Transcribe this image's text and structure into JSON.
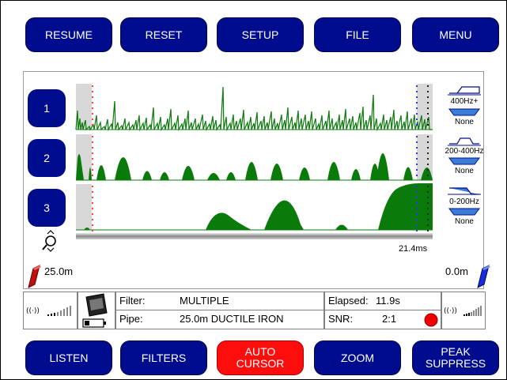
{
  "top_buttons": [
    {
      "label": "RESUME"
    },
    {
      "label": "RESET"
    },
    {
      "label": "SETUP"
    },
    {
      "label": "FILE"
    },
    {
      "label": "MENU"
    }
  ],
  "bottom_buttons": [
    {
      "label_line1": "LISTEN",
      "label_line2": ""
    },
    {
      "label_line1": "FILTERS",
      "label_line2": ""
    },
    {
      "label_line1": "AUTO",
      "label_line2": "CURSOR"
    },
    {
      "label_line1": "ZOOM",
      "label_line2": ""
    },
    {
      "label_line1": "PEAK",
      "label_line2": "SUPPRESS"
    }
  ],
  "channels": [
    {
      "label": "1",
      "filter": "400Hz+",
      "filter2": "None"
    },
    {
      "label": "2",
      "filter": "200-400Hz",
      "filter2": "None"
    },
    {
      "label": "3",
      "filter": "0-200Hz",
      "filter2": "None"
    }
  ],
  "time_readout": "21.4ms",
  "left_distance": "25.0m",
  "right_distance": "0.0m",
  "info": {
    "filter_label": "Filter:",
    "filter_value": "MULTIPLE",
    "pipe_label": "Pipe:",
    "pipe_value": "25.0m DUCTILE IRON",
    "elapsed_label": "Elapsed:",
    "elapsed_value": "11.9s",
    "snr_label": "SNR:",
    "snr_value": "2:1"
  },
  "icons": {
    "zoom": "magnifier-icon",
    "sensor_left": "sensor-red-icon",
    "sensor_right": "sensor-blue-icon",
    "signal_left": "wireless-signal-icon",
    "signal_right": "wireless-signal-icon",
    "device": "logger-device-icon",
    "battery": "battery-icon",
    "status": "record-indicator-icon"
  },
  "colors": {
    "button": "#000c8e",
    "button_active": "#ff0d0d",
    "waveform": "#0a7a0a",
    "cursor_left": "#ff4040",
    "cursor_right": "#3030ff",
    "status_dot": "#ee0000"
  }
}
